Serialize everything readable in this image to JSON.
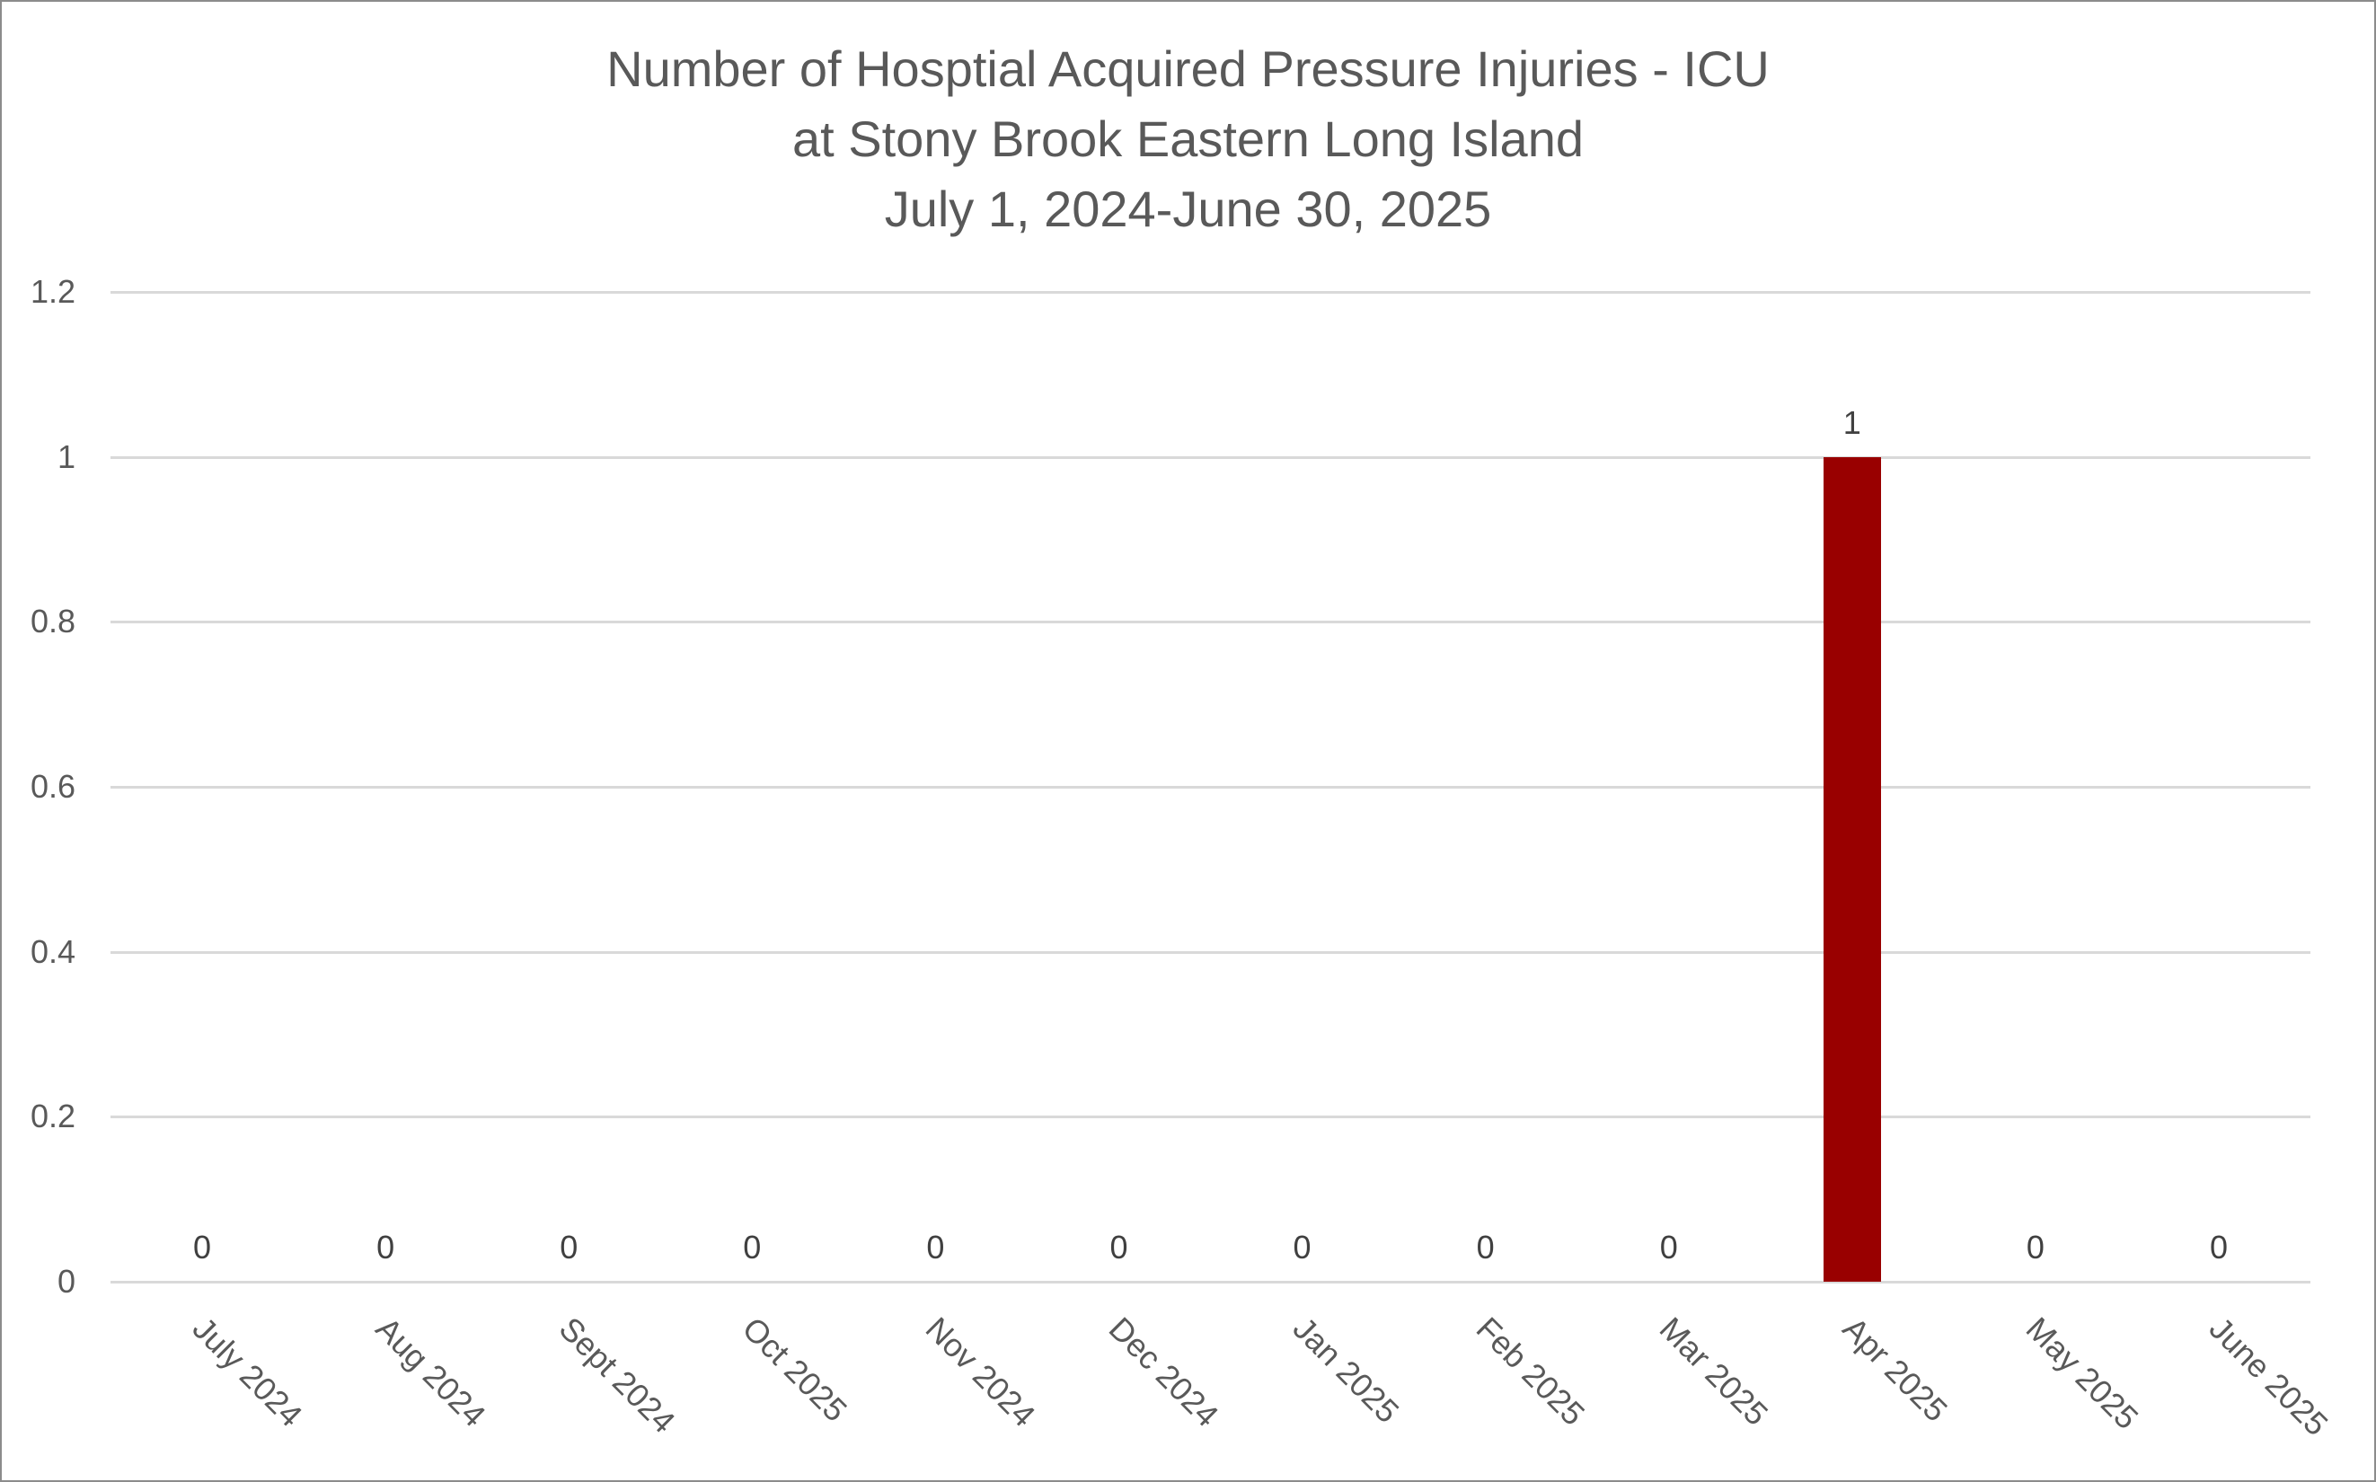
{
  "chart": {
    "title_lines": [
      "Number of Hosptial Acquired Pressure Injuries - ICU",
      "at Stony Brook Eastern Long Island",
      "July 1, 2024-June 30, 2025"
    ],
    "y_ticks": [
      "0",
      "0.2",
      "0.4",
      "0.6",
      "0.8",
      "1",
      "1.2"
    ],
    "categories": [
      "July 2024",
      "Aug 2024",
      "Sept 2024",
      "Oct 2025",
      "Nov 2024",
      "Dec 2024",
      "Jan 2025",
      "Feb 2025",
      "Mar 2025",
      "Apr 2025",
      "May 2025",
      "June 2025"
    ],
    "data_labels": [
      "0",
      "0",
      "0",
      "0",
      "0",
      "0",
      "0",
      "0",
      "0",
      "1",
      "0",
      "0"
    ],
    "bar_color": "#990000"
  },
  "chart_data": {
    "type": "bar",
    "title": "Number of Hosptial Acquired Pressure Injuries - ICU at Stony Brook Eastern Long Island July 1, 2024-June 30, 2025",
    "categories": [
      "July 2024",
      "Aug 2024",
      "Sept 2024",
      "Oct 2025",
      "Nov 2024",
      "Dec 2024",
      "Jan 2025",
      "Feb 2025",
      "Mar 2025",
      "Apr 2025",
      "May 2025",
      "June 2025"
    ],
    "values": [
      0,
      0,
      0,
      0,
      0,
      0,
      0,
      0,
      0,
      1,
      0,
      0
    ],
    "xlabel": "",
    "ylabel": "",
    "ylim": [
      0,
      1.2
    ],
    "yticks": [
      0,
      0.2,
      0.4,
      0.6,
      0.8,
      1,
      1.2
    ],
    "grid": true,
    "legend": null,
    "data_labels": true,
    "colors": {
      "bar": "#990000",
      "gridline": "#d9d9d9",
      "text": "#595959"
    }
  }
}
